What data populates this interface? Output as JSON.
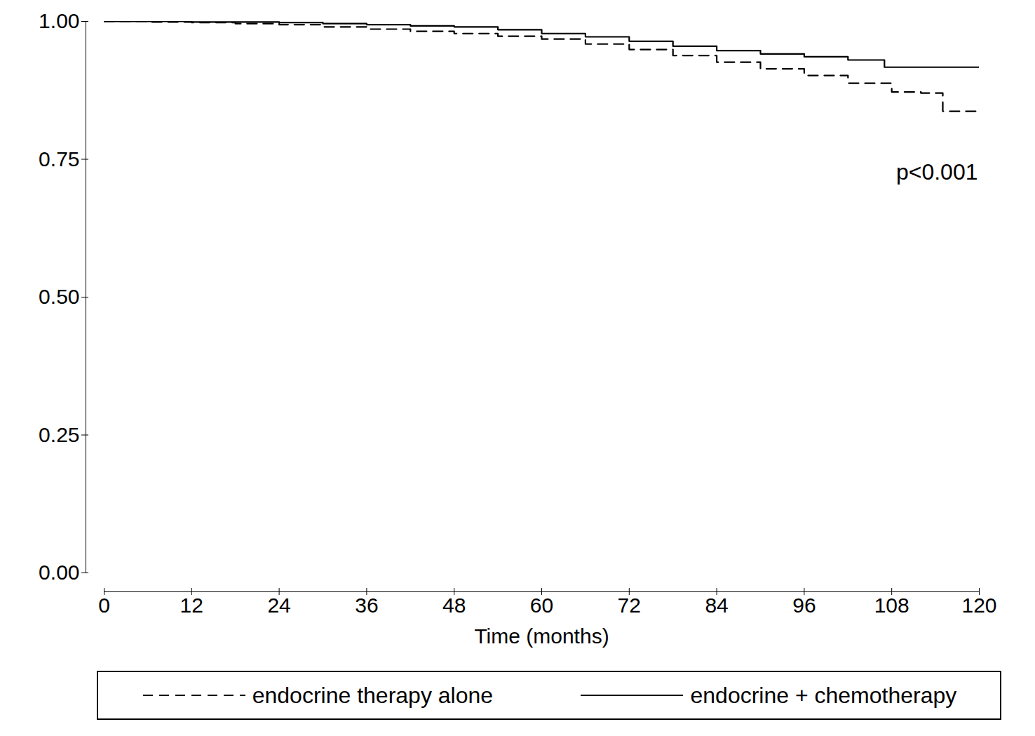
{
  "chart_data": {
    "type": "line",
    "x_label": "Time (months)",
    "annotations": [
      "p<0.001"
    ],
    "xlim": [
      0,
      120
    ],
    "xticks": [
      0,
      12,
      24,
      36,
      48,
      60,
      72,
      84,
      96,
      108,
      120
    ],
    "ylim": [
      0,
      1
    ],
    "yticks": [
      {
        "value": 0,
        "label": "0.00"
      },
      {
        "value": 0.25,
        "label": "0.25"
      },
      {
        "value": 0.5,
        "label": "0.50"
      },
      {
        "value": 0.75,
        "label": "0.75"
      },
      {
        "value": 1,
        "label": "1.00"
      }
    ],
    "grid": false,
    "legend": "bottom",
    "series": [
      {
        "name": "endocrine therapy alone",
        "color": "#000000",
        "line_style": "dashed",
        "x": [
          0,
          6,
          12,
          18,
          24,
          30,
          36,
          42,
          48,
          54,
          60,
          66,
          72,
          78,
          84,
          90,
          96,
          102,
          108,
          112,
          115,
          120
        ],
        "values": [
          1.0,
          0.999,
          0.998,
          0.996,
          0.994,
          0.99,
          0.986,
          0.982,
          0.978,
          0.973,
          0.968,
          0.959,
          0.949,
          0.938,
          0.926,
          0.914,
          0.902,
          0.888,
          0.872,
          0.87,
          0.837,
          0.837
        ]
      },
      {
        "name": "endocrine + chemotherapy",
        "color": "#000000",
        "line_style": "solid",
        "x": [
          0,
          6,
          12,
          18,
          24,
          30,
          36,
          42,
          48,
          54,
          60,
          66,
          72,
          78,
          84,
          90,
          96,
          102,
          107,
          120
        ],
        "values": [
          1.0,
          1.0,
          0.999,
          0.999,
          0.998,
          0.996,
          0.994,
          0.992,
          0.99,
          0.985,
          0.978,
          0.972,
          0.964,
          0.955,
          0.947,
          0.941,
          0.936,
          0.93,
          0.917,
          0.917
        ]
      }
    ]
  }
}
